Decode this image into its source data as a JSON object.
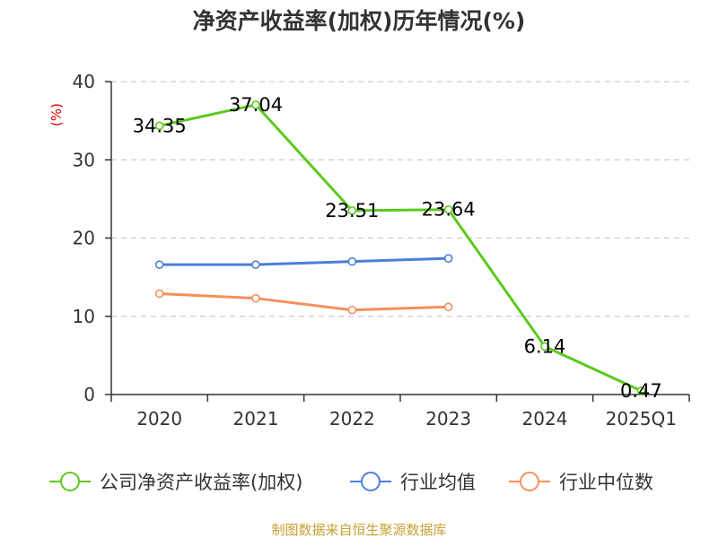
{
  "chart_data": {
    "type": "line",
    "title": "净资产收益率(加权)历年情况(%)",
    "ylabel": "(%)",
    "xlabel": "",
    "categories": [
      "2020",
      "2021",
      "2022",
      "2023",
      "2024",
      "2025Q1"
    ],
    "ylim": [
      0,
      40
    ],
    "yticks": [
      0,
      10,
      20,
      30,
      40
    ],
    "grid": true,
    "legend_position": "bottom",
    "series": [
      {
        "name": "公司净资产收益率(加权)",
        "color": "#5cc91e",
        "values": [
          34.35,
          37.04,
          23.51,
          23.64,
          6.14,
          0.47
        ],
        "labels": [
          "34.35",
          "37.04",
          "23.51",
          "23.64",
          "6.14",
          "0.47"
        ]
      },
      {
        "name": "行业均值",
        "color": "#4a7fdb",
        "values": [
          16.6,
          16.6,
          17.0,
          17.4,
          null,
          null
        ]
      },
      {
        "name": "行业中位数",
        "color": "#f5905a",
        "values": [
          12.9,
          12.3,
          10.8,
          11.2,
          null,
          null
        ]
      }
    ]
  },
  "source": "制图数据来自恒生聚源数据库"
}
